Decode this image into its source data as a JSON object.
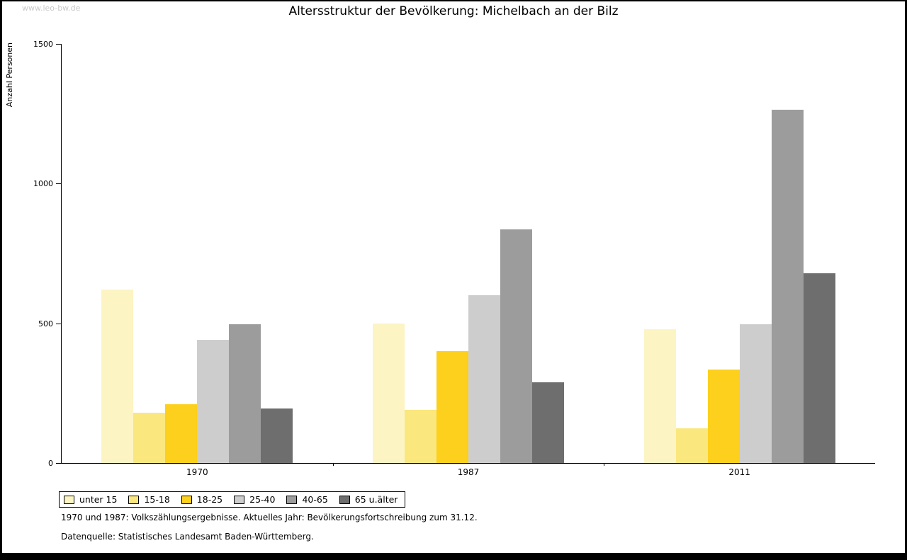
{
  "watermark": "www.leo-bw.de",
  "chart_data": {
    "type": "bar",
    "title": "Altersstruktur der Bevölkerung: Michelbach an der Bilz",
    "ylabel": "Anzahl Personen",
    "xlabel": "",
    "categories": [
      "1970",
      "1987",
      "2011"
    ],
    "series": [
      {
        "name": "unter 15",
        "color": "#fcf4c3",
        "values": [
          620,
          500,
          480
        ]
      },
      {
        "name": "15-18",
        "color": "#fae77e",
        "values": [
          180,
          190,
          125
        ]
      },
      {
        "name": "18-25",
        "color": "#fcd01c",
        "values": [
          210,
          400,
          335
        ]
      },
      {
        "name": "25-40",
        "color": "#cdcdcd",
        "values": [
          440,
          600,
          497
        ]
      },
      {
        "name": "40-65",
        "color": "#9c9c9c",
        "values": [
          497,
          835,
          1265
        ]
      },
      {
        "name": "65 u.älter",
        "color": "#6e6e6e",
        "values": [
          195,
          290,
          680
        ]
      }
    ],
    "ylim": [
      0,
      1500
    ],
    "yticks": [
      0,
      500,
      1000,
      1500
    ],
    "grid": false,
    "legend_position": "bottom-left"
  },
  "footnotes": [
    "1970 und 1987: Volkszählungsergebnisse. Aktuelles Jahr: Bevölkerungsfortschreibung zum 31.12.",
    "Datenquelle: Statistisches Landesamt Baden-Württemberg."
  ]
}
